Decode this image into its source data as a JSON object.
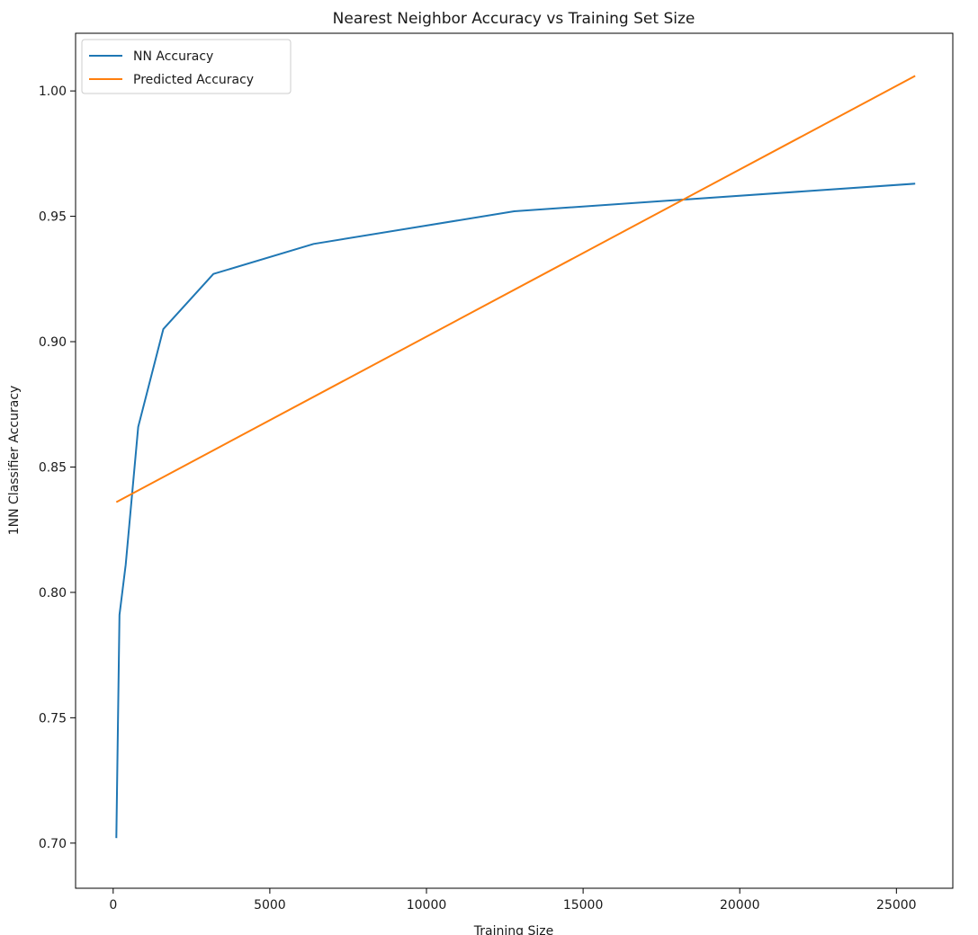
{
  "chart_data": {
    "type": "line",
    "title": "Nearest Neighbor Accuracy vs Training Set Size",
    "xlabel": "Training Size",
    "ylabel": "1NN Classifier Accuracy",
    "xlim": [
      -1200,
      26800
    ],
    "ylim": [
      0.682,
      1.023
    ],
    "xticks": [
      0,
      5000,
      10000,
      15000,
      20000,
      25000
    ],
    "yticks": [
      0.7,
      0.75,
      0.8,
      0.85,
      0.9,
      0.95,
      1.0
    ],
    "grid": false,
    "legend_position": "top-left",
    "series": [
      {
        "name": "NN Accuracy",
        "color": "#1f77b4",
        "x": [
          100,
          200,
          400,
          800,
          1600,
          3200,
          6400,
          12800,
          25600
        ],
        "y": [
          0.702,
          0.791,
          0.811,
          0.866,
          0.905,
          0.927,
          0.939,
          0.952,
          0.963
        ]
      },
      {
        "name": "Predicted Accuracy",
        "color": "#ff7f0e",
        "x": [
          100,
          25600
        ],
        "y": [
          0.836,
          1.006
        ]
      }
    ]
  }
}
